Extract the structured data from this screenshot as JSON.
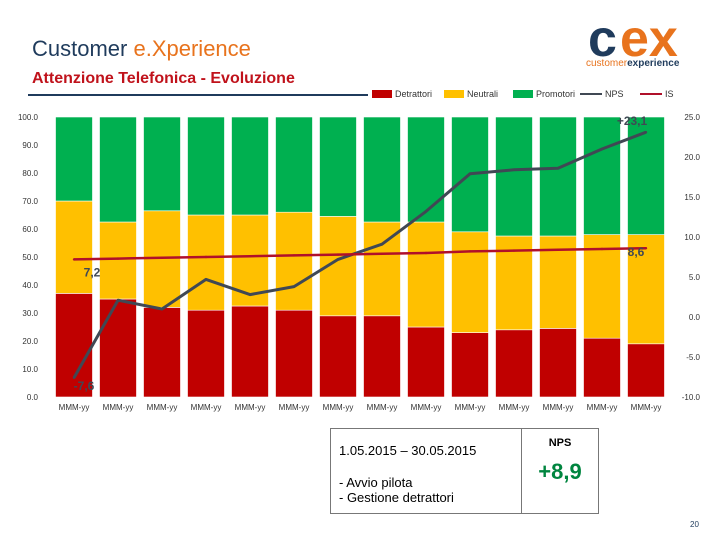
{
  "header": {
    "title_main": "Customer ",
    "title_accent": "e.Xperience",
    "subtitle": "Attenzione Telefonica - Evoluzione"
  },
  "logo": {
    "mark_c": "c",
    "mark_ex": "ex",
    "word_a": "customer",
    "word_b": "experience",
    "color_navy": "#1f3b5c",
    "color_orange": "#e8731d"
  },
  "chart_data": {
    "type": "bar",
    "stacked": true,
    "categories": [
      "MMM-yy",
      "MMM-yy",
      "MMM-yy",
      "MMM-yy",
      "MMM-yy",
      "MMM-yy",
      "MMM-yy",
      "MMM-yy",
      "MMM-yy",
      "MMM-yy",
      "MMM-yy",
      "MMM-yy",
      "MMM-yy",
      "MMM-yy"
    ],
    "ylim": [
      0,
      100
    ],
    "y2lim": [
      -10,
      25
    ],
    "yticks": [
      "100.0",
      "90.0",
      "80.0",
      "70.0",
      "60.0",
      "50.0",
      "40.0",
      "30.0",
      "20.0",
      "10.0",
      "0.0"
    ],
    "y2ticks": [
      "25.0",
      "20.0",
      "15.0",
      "10.0",
      "5.0",
      "0.0",
      "-5.0",
      "-10.0"
    ],
    "series": [
      {
        "name": "Detrattori",
        "color": "#c00000",
        "values": [
          37,
          35,
          32,
          31,
          32.5,
          31,
          29,
          29,
          25,
          23,
          24,
          24.5,
          21,
          19
        ]
      },
      {
        "name": "Neutrali",
        "color": "#ffc000",
        "values": [
          33,
          27.5,
          34.5,
          34,
          32.5,
          35,
          35.5,
          33.5,
          37.5,
          36,
          33.5,
          33,
          37,
          39
        ]
      },
      {
        "name": "Promotori",
        "color": "#00b050",
        "values": [
          30,
          37.5,
          33.5,
          35,
          35,
          34,
          35.5,
          37.5,
          37.5,
          41,
          42.5,
          42.5,
          42,
          42
        ]
      },
      {
        "name": "NPS",
        "color": "#404854",
        "axis": "right",
        "values": [
          -7.6,
          2.1,
          1,
          4.7,
          2.8,
          3.8,
          7.2,
          9.1,
          13.2,
          17.9,
          18.4,
          18.6,
          21,
          23.1
        ]
      },
      {
        "name": "IS",
        "color": "#b0102a",
        "axis": "right",
        "values": [
          7.2,
          7.3,
          7.4,
          7.5,
          7.6,
          7.7,
          7.8,
          7.9,
          8,
          8.2,
          8.3,
          8.4,
          8.5,
          8.6
        ]
      }
    ],
    "annotations": [
      {
        "text": "+23,1",
        "axis": "right",
        "category_index": 13,
        "value": 23.1
      },
      {
        "text": "8,6",
        "axis": "right",
        "category_index": 13,
        "value": 8.6
      },
      {
        "text": "7,2",
        "axis": "right",
        "category_index": 0,
        "value": 7.2
      },
      {
        "text": "-7,6",
        "axis": "right",
        "category_index": 0,
        "value": -7.6
      }
    ],
    "legend": [
      "Detrattori",
      "Neutrali",
      "Promotori",
      "NPS",
      "IS"
    ]
  },
  "info_box": {
    "period": "1.05.2015 – 30.05.2015",
    "notes": [
      "- Avvio pilota",
      "- Gestione detrattori"
    ]
  },
  "nps_box": {
    "label": "NPS",
    "value": "+8,9"
  },
  "page_number": "20"
}
